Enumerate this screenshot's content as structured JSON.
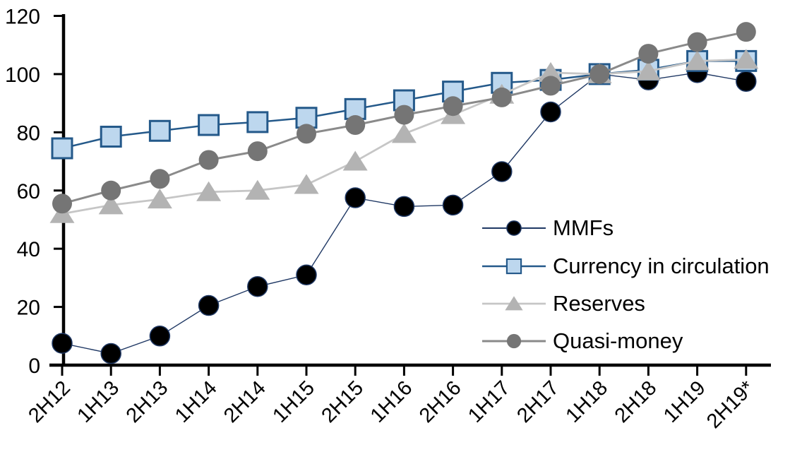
{
  "chart_data": {
    "type": "line",
    "title": "",
    "xlabel": "",
    "ylabel": "",
    "grid": false,
    "legend_position": "middle-right",
    "ylim": [
      0,
      120
    ],
    "ytick_step": 20,
    "y_tick_labels": [
      "0",
      "20",
      "40",
      "60",
      "80",
      "100",
      "120"
    ],
    "categories": [
      "2H12",
      "1H13",
      "2H13",
      "1H14",
      "2H14",
      "1H15",
      "2H15",
      "1H16",
      "2H16",
      "1H17",
      "2H17",
      "1H18",
      "2H18",
      "1H19",
      "2H19*"
    ],
    "axis_color": "#000000",
    "series": [
      {
        "name": "MMFs",
        "marker": "circle",
        "line_color": "#1f3864",
        "line_width": 1.4,
        "fill": "#000000",
        "stroke": "#1f3864",
        "values": [
          7.5,
          4,
          10,
          20.5,
          27,
          31,
          57.5,
          54.5,
          55,
          66.5,
          87,
          100,
          98,
          100.5,
          97.5
        ]
      },
      {
        "name": "Currency in circulation",
        "marker": "square",
        "line_color": "#24598a",
        "line_width": 2.5,
        "fill": "#bdd7ee",
        "stroke": "#24598a",
        "values": [
          74.5,
          78.5,
          80.5,
          82.5,
          83.5,
          85,
          88,
          91,
          94,
          97,
          98,
          100,
          101.5,
          104.5,
          104.5
        ]
      },
      {
        "name": "Reserves",
        "marker": "triangle",
        "line_color": "#c6c6c6",
        "line_width": 2.8,
        "fill": "#b3b3b3",
        "stroke": "none",
        "values": [
          52,
          55,
          57,
          59.5,
          60,
          62,
          70,
          79.5,
          86,
          93,
          100.5,
          100,
          101,
          104.5,
          105
        ]
      },
      {
        "name": "Quasi-money",
        "marker": "circle",
        "line_color": "#8a8a8a",
        "line_width": 3,
        "fill": "#757575",
        "stroke": "none",
        "values": [
          55.5,
          60,
          64,
          70.5,
          73.5,
          79.5,
          82.5,
          86,
          89,
          92,
          96,
          100,
          107,
          111,
          114.5
        ]
      }
    ]
  }
}
